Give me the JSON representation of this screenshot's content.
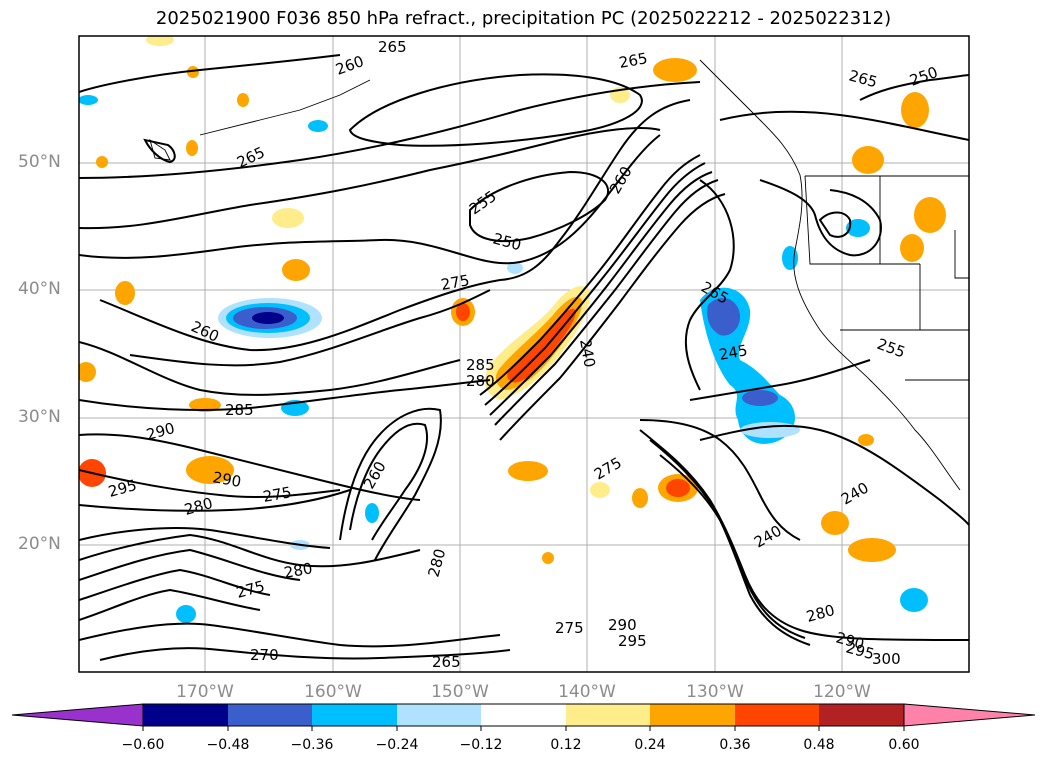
{
  "title": "2025021900 F036 850 hPa refract., precipitation PC (2025022212 - 2025022312)",
  "lat_labels": [
    "50°N",
    "40°N",
    "30°N",
    "20°N"
  ],
  "lon_labels": [
    "170°W",
    "160°W",
    "150°W",
    "140°W",
    "130°W",
    "120°W"
  ],
  "colorbar": {
    "colors": [
      "#9932cc",
      "#00008b",
      "#3a5fcd",
      "#00bfff",
      "#b0e2ff",
      "#ffffff",
      "#ffec8b",
      "#ffa500",
      "#ff4500",
      "#b22222",
      "#ff82ab"
    ],
    "tick_labels": [
      "−0.60",
      "−0.48",
      "−0.36",
      "−0.24",
      "−0.12",
      "0.12",
      "0.24",
      "0.36",
      "0.48",
      "0.60"
    ]
  },
  "contour_labels": [
    {
      "text": "265"
    },
    {
      "text": "260"
    },
    {
      "text": "265"
    },
    {
      "text": "265"
    },
    {
      "text": "250"
    },
    {
      "text": "265"
    },
    {
      "text": "255"
    },
    {
      "text": "250"
    },
    {
      "text": "260"
    },
    {
      "text": "275"
    },
    {
      "text": "260"
    },
    {
      "text": "240"
    },
    {
      "text": "265"
    },
    {
      "text": "245"
    },
    {
      "text": "285"
    },
    {
      "text": "280"
    },
    {
      "text": "285"
    },
    {
      "text": "290"
    },
    {
      "text": "295"
    },
    {
      "text": "290"
    },
    {
      "text": "280"
    },
    {
      "text": "275"
    },
    {
      "text": "260"
    },
    {
      "text": "275"
    },
    {
      "text": "280"
    },
    {
      "text": "240"
    },
    {
      "text": "240"
    },
    {
      "text": "280"
    },
    {
      "text": "275"
    },
    {
      "text": "290"
    },
    {
      "text": "295"
    },
    {
      "text": "280"
    },
    {
      "text": "290"
    },
    {
      "text": "295"
    },
    {
      "text": "300"
    },
    {
      "text": "265"
    },
    {
      "text": "270"
    },
    {
      "text": "255"
    },
    {
      "text": "275"
    }
  ],
  "colors": {
    "contour": "#000000",
    "grid": "#b0b0b0",
    "frame": "#000000"
  }
}
